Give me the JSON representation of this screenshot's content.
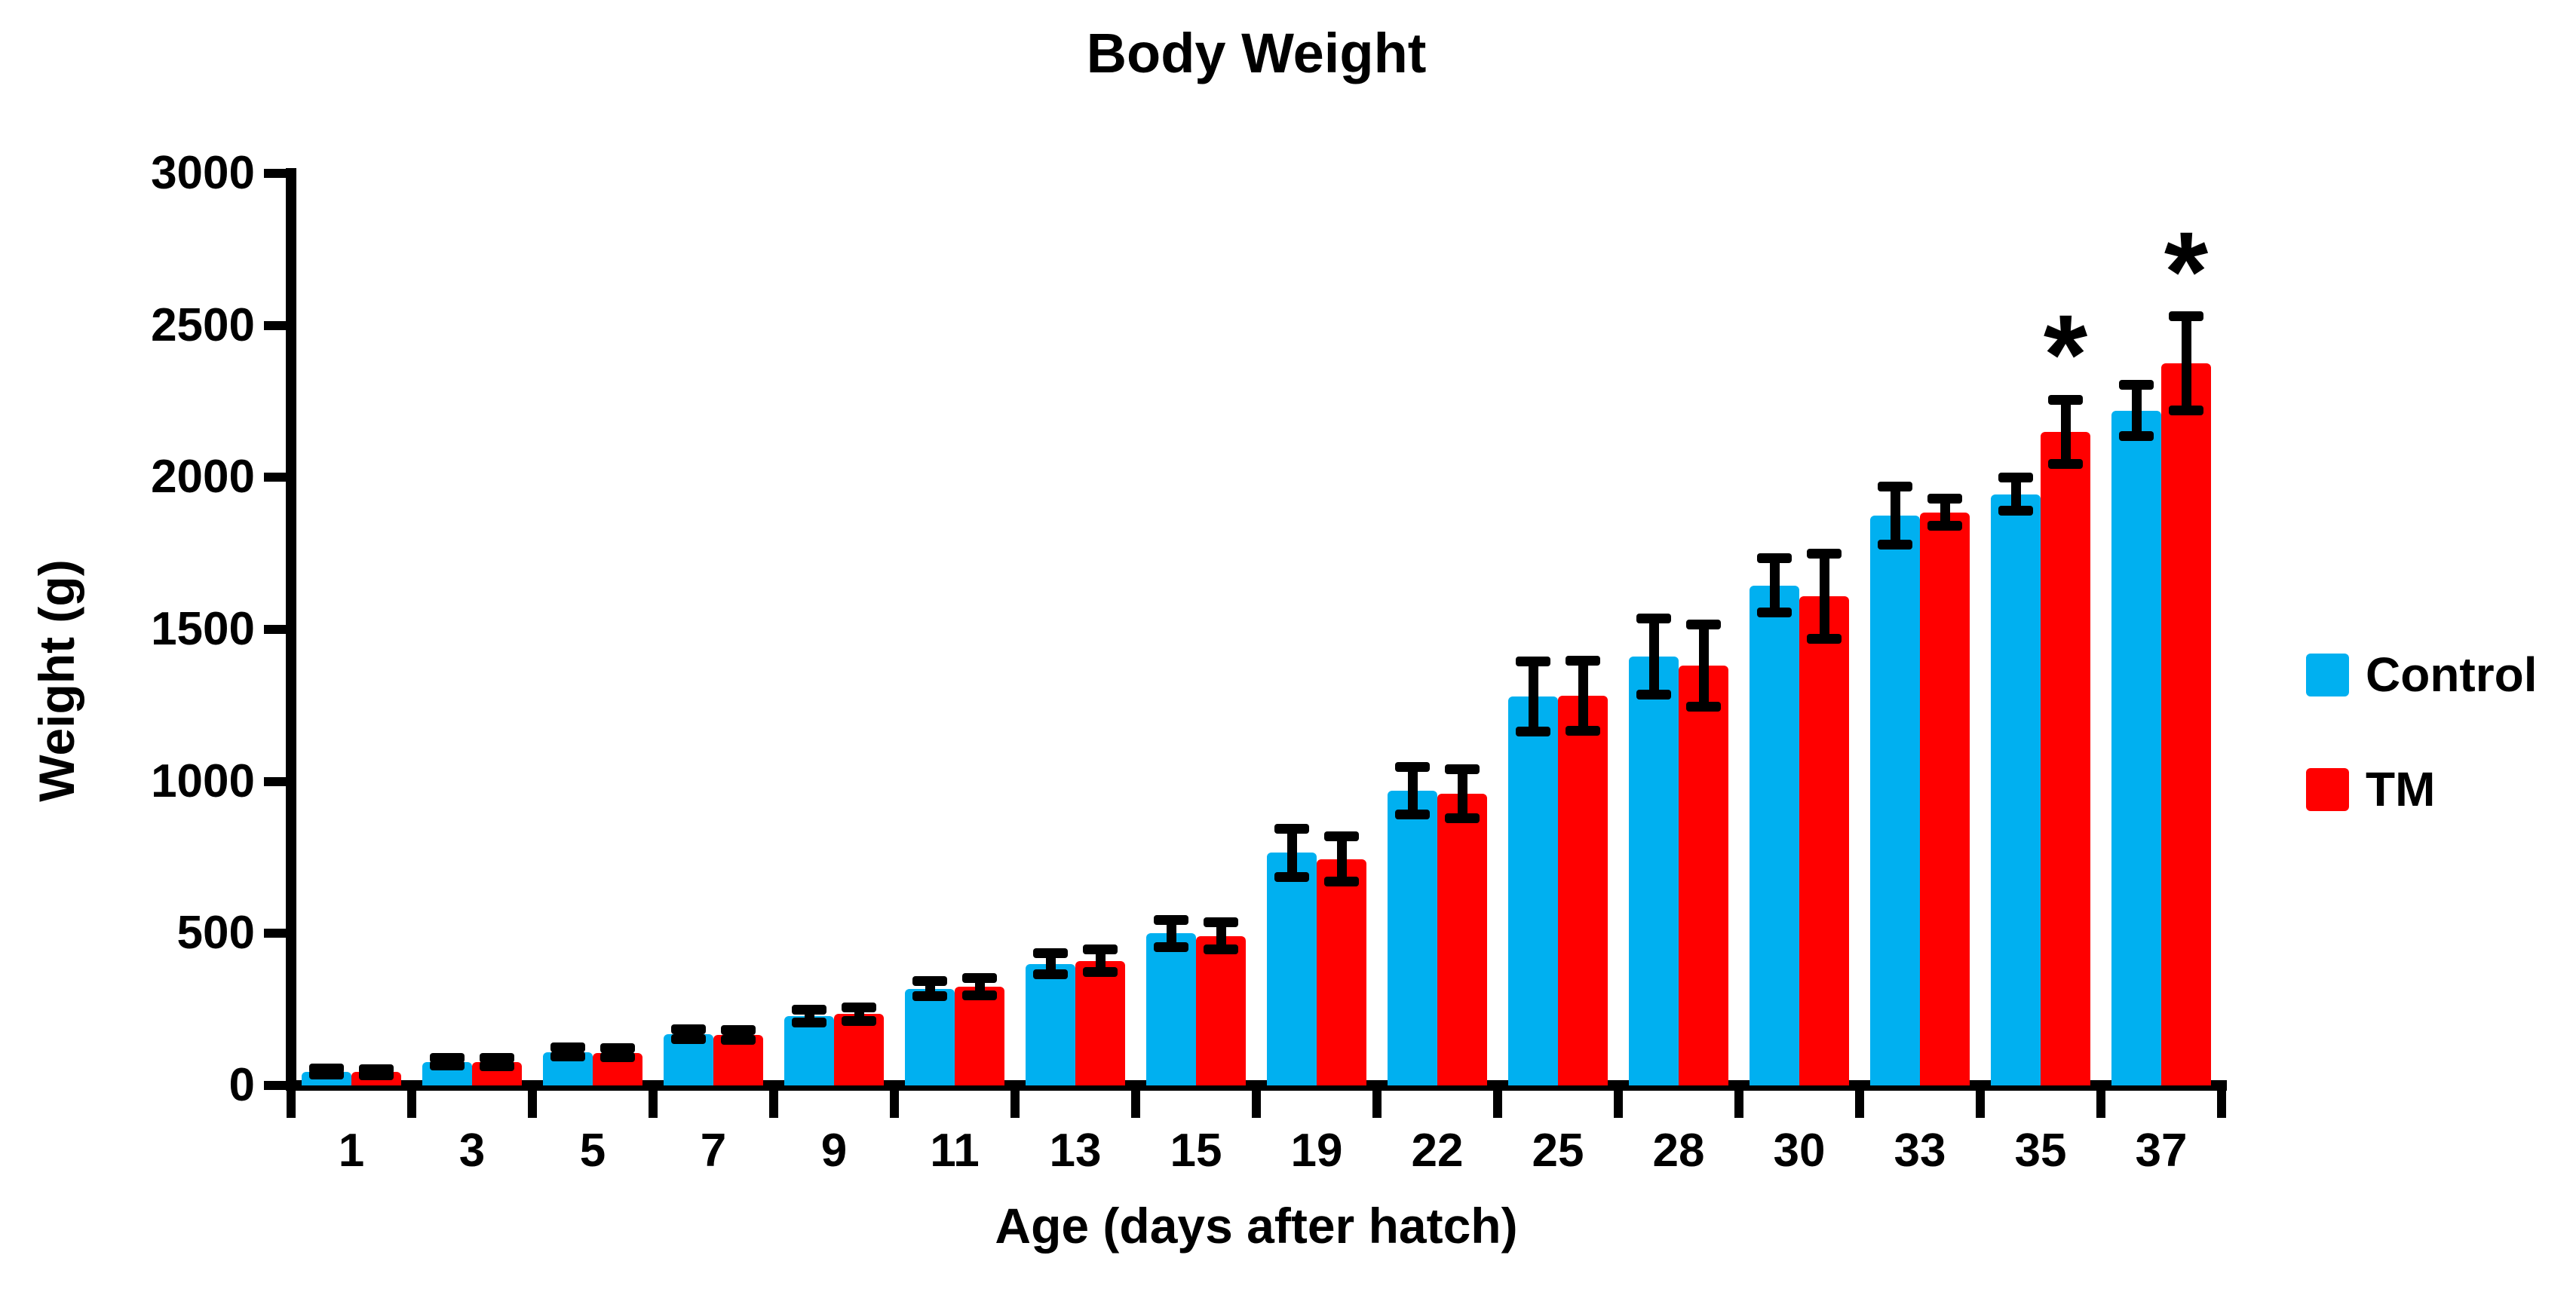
{
  "title": "Body Weight",
  "y_axis": {
    "label": "Weight (g)",
    "tick_labels": [
      "0",
      "500",
      "1000",
      "1500",
      "2000",
      "2500",
      "3000"
    ]
  },
  "x_axis": {
    "label": "Age (days after hatch)"
  },
  "legend": {
    "position": "right",
    "entries": [
      {
        "label": "Control",
        "color": "#00B0F0"
      },
      {
        "label": "TM",
        "color": "#FF0000"
      }
    ]
  },
  "colors": {
    "control": "#00B0F0",
    "tm": "#FF0000",
    "axis": "#000000",
    "background": "#FFFFFF"
  },
  "significance_marker_glyph": "*",
  "chart_data": {
    "type": "bar",
    "title": "Body Weight",
    "xlabel": "Age (days after hatch)",
    "ylabel": "Weight (g)",
    "ylim": [
      0,
      3000
    ],
    "ytick_interval": 500,
    "grid": false,
    "error_bars": true,
    "legend_position": "right",
    "categories": [
      "1",
      "3",
      "5",
      "7",
      "9",
      "11",
      "13",
      "15",
      "19",
      "22",
      "25",
      "28",
      "30",
      "33",
      "35",
      "37"
    ],
    "series": [
      {
        "name": "Control",
        "color": "#00B0F0",
        "values": [
          45,
          78,
          110,
          168,
          228,
          318,
          400,
          500,
          765,
          970,
          1280,
          1410,
          1645,
          1875,
          1945,
          2220
        ],
        "errors": [
          10,
          12,
          15,
          16,
          20,
          25,
          35,
          45,
          80,
          78,
          115,
          125,
          90,
          95,
          55,
          85
        ]
      },
      {
        "name": "TM",
        "color": "#FF0000",
        "values": [
          44,
          76,
          107,
          165,
          235,
          325,
          410,
          492,
          745,
          960,
          1282,
          1382,
          1610,
          1885,
          2150,
          2375
        ],
        "errors": [
          10,
          14,
          15,
          16,
          22,
          28,
          38,
          45,
          75,
          80,
          115,
          135,
          140,
          45,
          105,
          155
        ]
      }
    ],
    "significance": [
      {
        "category": "35",
        "series": "TM",
        "marker": "*"
      },
      {
        "category": "37",
        "series": "TM",
        "marker": "*"
      }
    ]
  }
}
